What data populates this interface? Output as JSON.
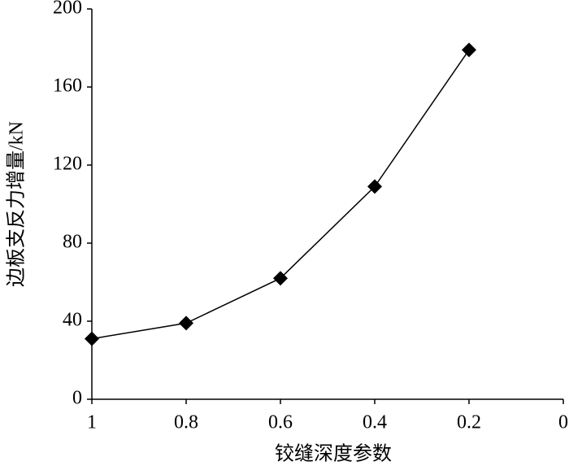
{
  "chart_data": {
    "type": "line",
    "x_label": "铰缝深度参数",
    "y_label": "边板支反力增量/kN",
    "x": [
      1,
      0.8,
      0.6,
      0.4,
      0.2
    ],
    "values": [
      31,
      39,
      62,
      109,
      179
    ],
    "color": "#000000",
    "marker": "diamond",
    "xlim": [
      1,
      0
    ],
    "xticks": [
      1,
      0.8,
      0.6,
      0.4,
      0.2,
      0
    ],
    "ylim": [
      0,
      200
    ],
    "yticks": [
      0,
      40,
      80,
      120,
      160,
      200
    ],
    "grid": false
  }
}
